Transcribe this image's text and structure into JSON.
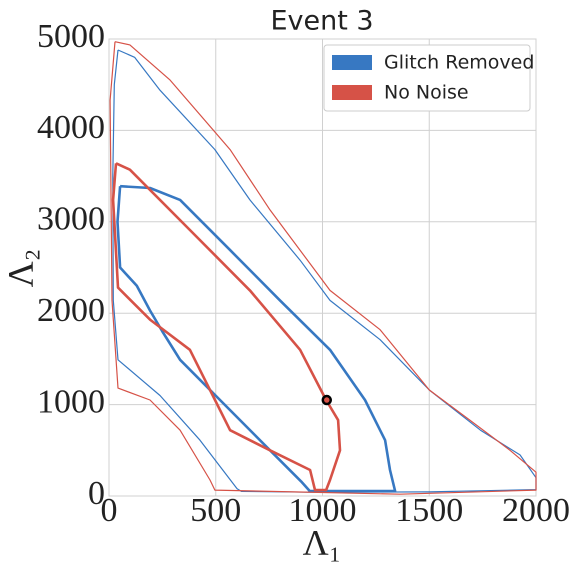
{
  "chart_data": {
    "type": "contour",
    "title": "Event 3",
    "xlabel": "Λ₁",
    "ylabel": "Λ₂",
    "xlim": [
      0,
      2000
    ],
    "ylim": [
      0,
      5000
    ],
    "xticks": [
      0,
      500,
      1000,
      1500,
      2000
    ],
    "yticks": [
      0,
      1000,
      2000,
      3000,
      4000,
      5000
    ],
    "grid": true,
    "legend": "upper right",
    "series": [
      {
        "name": "Glitch Removed",
        "color": "#3778c2",
        "contours": [
          {
            "x": [
              42,
              120,
              239,
              496,
              660,
              895,
              1035,
              1270,
              1500,
              1740,
              1925,
              2000,
              2000,
              1500,
              1000,
              620,
              600,
              426,
              239,
              42,
              20,
              18,
              25,
              42
            ],
            "y": [
              4880,
              4800,
              4440,
              3790,
              3240,
              2580,
              2140,
              1710,
              1160,
              720,
              450,
              200,
              70,
              45,
              40,
              50,
              80,
              610,
              1100,
              1490,
              2140,
              3500,
              4500,
              4880
            ]
          },
          {
            "x": [
              52,
              192,
              333,
              567,
              801,
              1035,
              1199,
              1293,
              1316,
              1340,
              940,
              900,
              754,
              520,
              333,
              250,
              192,
              130,
              52,
              40,
              52
            ],
            "y": [
              3390,
              3370,
              3240,
              2690,
              2140,
              1600,
              1050,
              610,
              285,
              55,
              55,
              160,
              500,
              1050,
              1490,
              1800,
              2030,
              2300,
              2500,
              3000,
              3390
            ]
          }
        ]
      },
      {
        "name": "No Noise",
        "color": "#d65247",
        "contours": [
          {
            "x": [
              28,
              98,
              286,
              567,
              754,
              1035,
              1270,
              1500,
              1690,
              1878,
              2000,
              2000,
              1363,
              496,
              473,
              333,
              192,
              42,
              14,
              5,
              28
            ],
            "y": [
              4970,
              4935,
              4550,
              3790,
              3130,
              2250,
              1820,
              1160,
              830,
              500,
              260,
              65,
              20,
              65,
              175,
              720,
              1050,
              1180,
              2140,
              4330,
              4970
            ]
          },
          {
            "x": [
              33,
              98,
              379,
              660,
              895,
              1017,
              1073,
              1082,
              1035,
              1017,
              965,
              942,
              754,
              567,
              473,
              379,
              192,
              42,
              19,
              33
            ],
            "y": [
              3640,
              3570,
              2910,
              2250,
              1600,
              1050,
              830,
              500,
              175,
              65,
              65,
              285,
              500,
              720,
              1160,
              1600,
              1930,
              2280,
              3240,
              3640
            ]
          }
        ]
      }
    ],
    "marker": {
      "x": 1020,
      "y": 1050
    }
  }
}
